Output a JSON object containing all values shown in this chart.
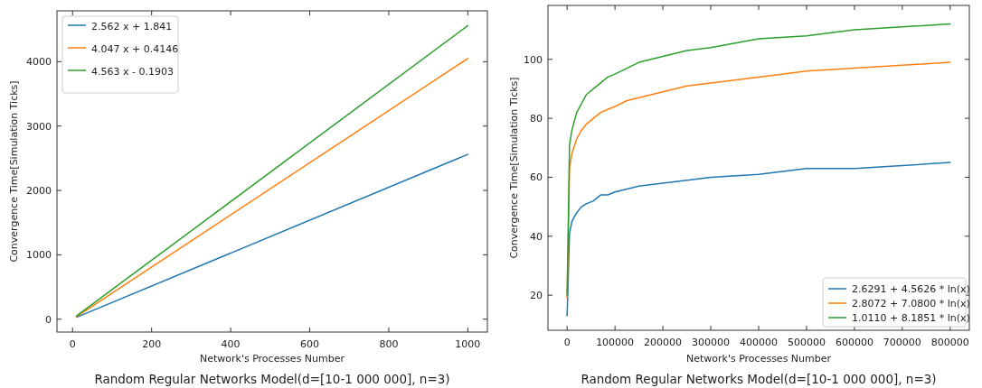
{
  "chart_data": [
    {
      "type": "line",
      "title": "Random Regular Networks Model(d=[10-1 000 000], n=3)",
      "xlabel": "Network's Processes Number",
      "ylabel": "Convergence Time[Simulation Ticks]",
      "x": [
        10,
        1000
      ],
      "xlim": [
        -39.5,
        1049.5
      ],
      "ylim": [
        -200,
        4790
      ],
      "xticks": [
        0,
        200,
        400,
        600,
        800,
        1000
      ],
      "yticks": [
        0,
        1000,
        2000,
        3000,
        4000
      ],
      "legend": "top left",
      "grid": false,
      "series": [
        {
          "name": "2.562 x + 1.841",
          "color": "#1f77b4",
          "values": [
            30,
            2560
          ]
        },
        {
          "name": "4.047 x + 0.4146",
          "color": "#ff7f0e",
          "values": [
            40,
            4050
          ]
        },
        {
          "name": "4.563 x - 0.1903",
          "color": "#2ca02c",
          "values": [
            50,
            4560
          ]
        }
      ]
    },
    {
      "type": "line",
      "title": "Random Regular Networks Model(d=[10-1 000 000], n=3)",
      "xlabel": "Network's Processes Number",
      "ylabel": "Convergence Time[Simulation Ticks]",
      "x": [
        10,
        5000,
        10000,
        20000,
        30000,
        40000,
        55000,
        70000,
        85000,
        100000,
        125000,
        150000,
        200000,
        250000,
        300000,
        400000,
        500000,
        600000,
        700000,
        800000
      ],
      "xlim": [
        -40000,
        840000
      ],
      "ylim": [
        8.1,
        118.3
      ],
      "xticks": [
        0,
        100000,
        200000,
        300000,
        400000,
        500000,
        600000,
        700000,
        800000
      ],
      "yticks": [
        20,
        40,
        60,
        80,
        100
      ],
      "legend": "bottom right",
      "grid": false,
      "series": [
        {
          "name": "2.6291 + 4.5626 * ln(x)",
          "color": "#1f77b4",
          "values": [
            13,
            41,
            45,
            48,
            50,
            51,
            52,
            54,
            54,
            55,
            56,
            57,
            58,
            59,
            60,
            61,
            63,
            63,
            64,
            65
          ]
        },
        {
          "name": "2.8072 + 7.0800 * ln(x)",
          "color": "#ff7f0e",
          "values": [
            19,
            63,
            68,
            73,
            76,
            78,
            80,
            82,
            83,
            84,
            86,
            87,
            89,
            91,
            92,
            94,
            96,
            97,
            98,
            99
          ]
        },
        {
          "name": "1.0110 + 8.1851 * ln(x)",
          "color": "#2ca02c",
          "values": [
            20,
            71,
            76,
            82,
            85,
            88,
            90,
            92,
            94,
            95,
            97,
            99,
            101,
            103,
            104,
            107,
            108,
            110,
            111,
            112
          ]
        }
      ]
    }
  ]
}
